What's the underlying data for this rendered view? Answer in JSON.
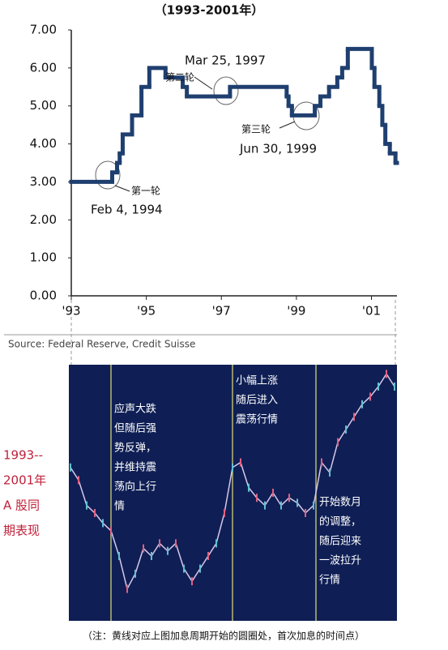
{
  "chart_data": [
    {
      "type": "line",
      "step": true,
      "title": "（1993-2001年）",
      "color": "#1f3f6f",
      "x": [
        1993.0,
        1994.09,
        1994.22,
        1994.29,
        1994.37,
        1994.62,
        1994.87,
        1995.08,
        1995.51,
        1995.97,
        1996.08,
        1997.23,
        1998.74,
        1998.79,
        1998.88,
        1999.49,
        1999.64,
        1999.87,
        2000.09,
        2000.22,
        2000.37,
        2001.01,
        2001.08,
        2001.21,
        2001.29,
        2001.37,
        2001.49,
        2001.64
      ],
      "values": [
        3.0,
        3.25,
        3.5,
        3.75,
        4.25,
        4.75,
        5.5,
        6.0,
        5.75,
        5.5,
        5.25,
        5.5,
        5.25,
        5.0,
        4.75,
        5.0,
        5.25,
        5.5,
        5.75,
        6.0,
        6.5,
        6.0,
        5.5,
        5.0,
        4.5,
        4.0,
        3.75,
        3.5
      ],
      "xlim": [
        1993,
        2001.68
      ],
      "ylim": [
        0,
        7
      ],
      "xticks": [
        {
          "value": 1993,
          "label": "'93"
        },
        {
          "value": 1995,
          "label": "'95"
        },
        {
          "value": 1997,
          "label": "'97"
        },
        {
          "value": 1999,
          "label": "'99"
        },
        {
          "value": 2001,
          "label": "'01"
        }
      ],
      "yticks": [
        {
          "value": 0,
          "label": "0.00"
        },
        {
          "value": 1,
          "label": "1.00"
        },
        {
          "value": 2,
          "label": "2.00"
        },
        {
          "value": 3,
          "label": "3.00"
        },
        {
          "value": 4,
          "label": "4.00"
        },
        {
          "value": 5,
          "label": "5.00"
        },
        {
          "value": 6,
          "label": "6.00"
        },
        {
          "value": 7,
          "label": "7.00"
        }
      ],
      "annotations": [
        "第一轮",
        "Feb 4, 1994",
        "Mar 25, 1997",
        "第二轮",
        "第三轮",
        "Jun 30, 1999"
      ],
      "source": "Source: Federal Reserve, Credit Suisse"
    },
    {
      "type": "line",
      "step": false,
      "color": "#d8c8e8",
      "label": [
        "1993--",
        "2001年",
        "A 股同",
        "期表现"
      ],
      "values": [
        60,
        55,
        45,
        42,
        38,
        35,
        25,
        12,
        18,
        28,
        25,
        30,
        27,
        30,
        20,
        15,
        20,
        25,
        30,
        42,
        60,
        62,
        52,
        48,
        45,
        50,
        45,
        48,
        46,
        42,
        45,
        62,
        58,
        70,
        75,
        80,
        85,
        88,
        92,
        97,
        92
      ],
      "ylim": [
        0,
        100
      ],
      "annotations": [
        [
          "应声大跌",
          "但随后强",
          "势反弹，",
          "并维持震",
          "荡向上行",
          "情"
        ],
        [
          "小幅上涨",
          "随后进入",
          "震荡行情"
        ],
        [
          "开始数月",
          "的调整，",
          "随后迎来",
          "一波拉升",
          "行情"
        ]
      ],
      "note": "（注：黄线对应上图加息周期开始的圆圈处，首次加息的时间点）"
    }
  ]
}
